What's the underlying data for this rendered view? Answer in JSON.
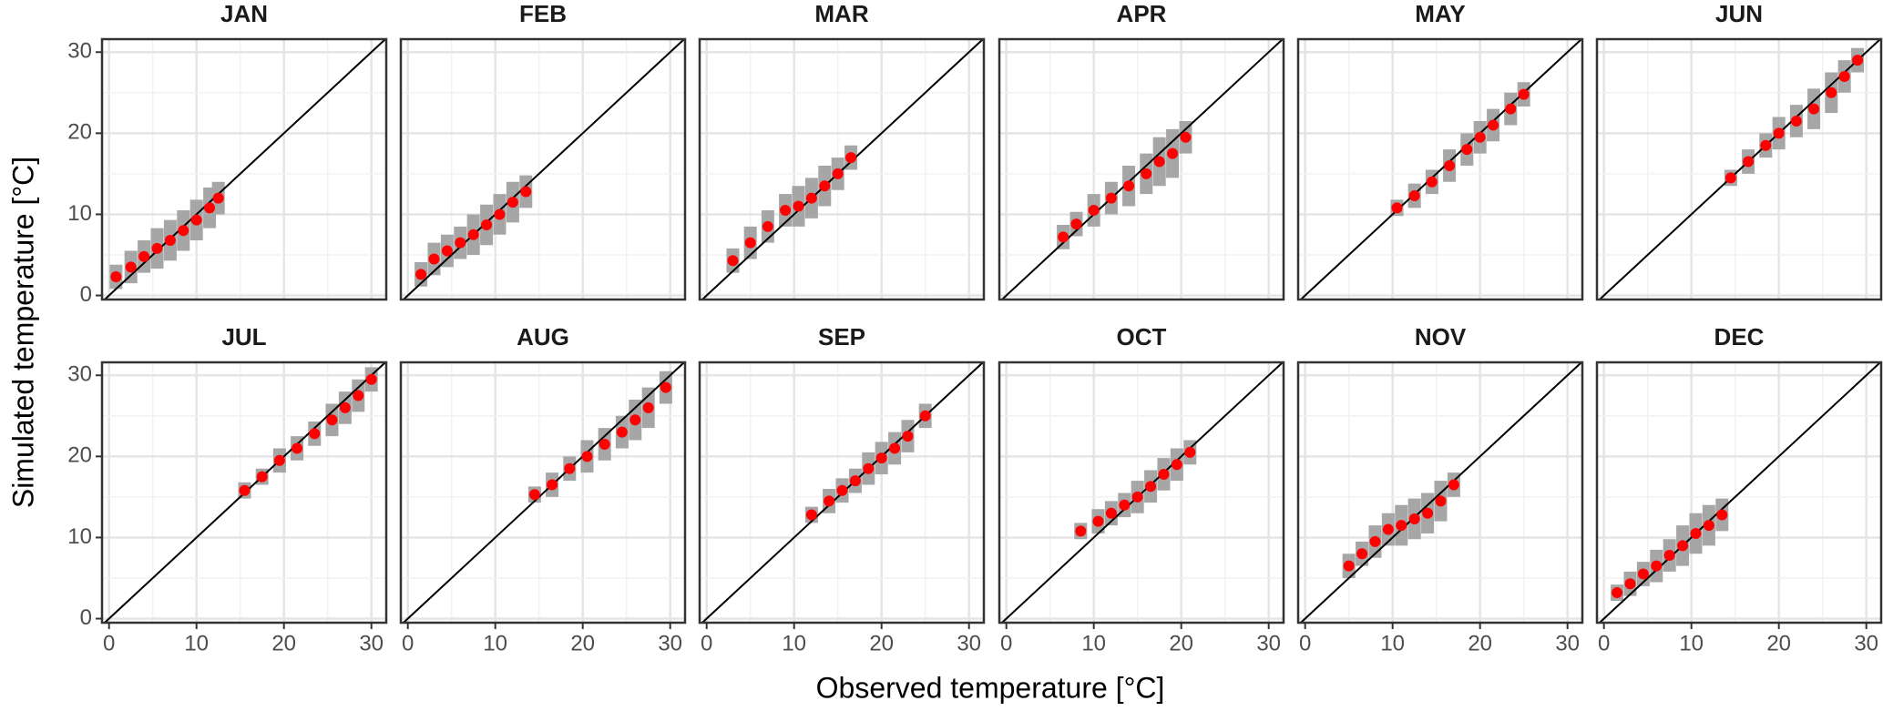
{
  "xlabel": "Observed temperature [°C]",
  "ylabel": "Simulated temperature [°C]",
  "chart_data": [
    {
      "type": "scatter",
      "title": "JAN",
      "x": [
        0.8,
        2.5,
        4,
        5.5,
        7,
        8.5,
        10,
        11.5,
        12.5
      ],
      "y": [
        2.3,
        3.5,
        4.8,
        5.8,
        6.8,
        8,
        9.3,
        10.8,
        12
      ],
      "yerr": [
        1.5,
        2,
        2,
        2.5,
        2.5,
        2.5,
        2.5,
        2.5,
        2
      ],
      "point_color": "#ff0000",
      "error_color": "#a6a6a6",
      "xlim": [
        -0.8,
        31.7
      ],
      "ylim": [
        -0.5,
        31.6
      ],
      "xticks": [
        0,
        10,
        20,
        30
      ],
      "yticks": [
        0,
        10,
        20,
        30
      ],
      "grid": true
    },
    {
      "type": "scatter",
      "title": "FEB",
      "x": [
        1.5,
        3,
        4.5,
        6,
        7.5,
        9,
        10.5,
        12,
        13.5
      ],
      "y": [
        2.6,
        4.5,
        5.5,
        6.5,
        7.5,
        8.7,
        10,
        11.5,
        12.8
      ],
      "yerr": [
        1.5,
        2,
        2,
        2,
        2.5,
        2.5,
        2.5,
        2.5,
        2
      ],
      "point_color": "#ff0000",
      "error_color": "#a6a6a6",
      "xlim": [
        -0.8,
        31.7
      ],
      "ylim": [
        -0.5,
        31.6
      ],
      "xticks": [
        0,
        10,
        20,
        30
      ],
      "yticks": [
        0,
        10,
        20,
        30
      ],
      "grid": true
    },
    {
      "type": "scatter",
      "title": "MAR",
      "x": [
        3,
        5,
        7,
        9,
        10.5,
        12,
        13.5,
        15,
        16.5
      ],
      "y": [
        4.3,
        6.5,
        8.5,
        10.5,
        11,
        12,
        13.5,
        15,
        17
      ],
      "yerr": [
        1.5,
        2,
        2,
        2,
        2.5,
        2.5,
        2.5,
        2,
        1.5
      ],
      "point_color": "#ff0000",
      "error_color": "#a6a6a6",
      "xlim": [
        -0.8,
        31.7
      ],
      "ylim": [
        -0.5,
        31.6
      ],
      "xticks": [
        0,
        10,
        20,
        30
      ],
      "yticks": [
        0,
        10,
        20,
        30
      ],
      "grid": true
    },
    {
      "type": "scatter",
      "title": "APR",
      "x": [
        6.5,
        8,
        10,
        12,
        14,
        16,
        17.5,
        19,
        20.5
      ],
      "y": [
        7.2,
        8.8,
        10.5,
        12,
        13.5,
        15,
        16.5,
        17.5,
        19.5
      ],
      "yerr": [
        1.5,
        1.5,
        2,
        2,
        2.5,
        2.5,
        3,
        3,
        2
      ],
      "point_color": "#ff0000",
      "error_color": "#a6a6a6",
      "xlim": [
        -0.8,
        31.7
      ],
      "ylim": [
        -0.5,
        31.6
      ],
      "xticks": [
        0,
        10,
        20,
        30
      ],
      "yticks": [
        0,
        10,
        20,
        30
      ],
      "grid": true
    },
    {
      "type": "scatter",
      "title": "MAY",
      "x": [
        10.5,
        12.5,
        14.5,
        16.5,
        18.5,
        20,
        21.5,
        23.5,
        25
      ],
      "y": [
        10.8,
        12.3,
        14,
        16,
        18,
        19.5,
        21,
        23,
        24.8
      ],
      "yerr": [
        1,
        1.5,
        1.5,
        2,
        2,
        2,
        2,
        2,
        1.5
      ],
      "point_color": "#ff0000",
      "error_color": "#a6a6a6",
      "xlim": [
        -0.8,
        31.7
      ],
      "ylim": [
        -0.5,
        31.6
      ],
      "xticks": [
        0,
        10,
        20,
        30
      ],
      "yticks": [
        0,
        10,
        20,
        30
      ],
      "grid": true
    },
    {
      "type": "scatter",
      "title": "JUN",
      "x": [
        14.5,
        16.5,
        18.5,
        20,
        22,
        24,
        26,
        27.5,
        29
      ],
      "y": [
        14.5,
        16.5,
        18.5,
        20,
        21.5,
        23,
        25,
        27,
        29
      ],
      "yerr": [
        1,
        1.5,
        1.5,
        2,
        2,
        2.5,
        2.5,
        2,
        1.5
      ],
      "point_color": "#ff0000",
      "error_color": "#a6a6a6",
      "xlim": [
        -0.8,
        31.7
      ],
      "ylim": [
        -0.5,
        31.6
      ],
      "xticks": [
        0,
        10,
        20,
        30
      ],
      "yticks": [
        0,
        10,
        20,
        30
      ],
      "grid": true
    },
    {
      "type": "scatter",
      "title": "JUL",
      "x": [
        15.5,
        17.5,
        19.5,
        21.5,
        23.5,
        25.5,
        27,
        28.5,
        30
      ],
      "y": [
        15.8,
        17.5,
        19.5,
        21,
        22.8,
        24.5,
        26,
        27.5,
        29.5
      ],
      "yerr": [
        1,
        1,
        1.5,
        1.5,
        1.5,
        2,
        2,
        2,
        1.5
      ],
      "point_color": "#ff0000",
      "error_color": "#a6a6a6",
      "xlim": [
        -0.8,
        31.7
      ],
      "ylim": [
        -0.5,
        31.6
      ],
      "xticks": [
        0,
        10,
        20,
        30
      ],
      "yticks": [
        0,
        10,
        20,
        30
      ],
      "grid": true
    },
    {
      "type": "scatter",
      "title": "AUG",
      "x": [
        14.5,
        16.5,
        18.5,
        20.5,
        22.5,
        24.5,
        26,
        27.5,
        29.5
      ],
      "y": [
        15.3,
        16.5,
        18.5,
        20,
        21.5,
        23,
        24.5,
        26,
        28.5
      ],
      "yerr": [
        1,
        1.5,
        1.5,
        2,
        2,
        2,
        2.5,
        2.5,
        2
      ],
      "point_color": "#ff0000",
      "error_color": "#a6a6a6",
      "xlim": [
        -0.8,
        31.7
      ],
      "ylim": [
        -0.5,
        31.6
      ],
      "xticks": [
        0,
        10,
        20,
        30
      ],
      "yticks": [
        0,
        10,
        20,
        30
      ],
      "grid": true
    },
    {
      "type": "scatter",
      "title": "SEP",
      "x": [
        12,
        14,
        15.5,
        17,
        18.5,
        20,
        21.5,
        23,
        25
      ],
      "y": [
        12.8,
        14.5,
        15.8,
        17,
        18.5,
        19.8,
        21,
        22.5,
        25
      ],
      "yerr": [
        1,
        1.5,
        1.5,
        1.5,
        2,
        2,
        2,
        2,
        1.5
      ],
      "point_color": "#ff0000",
      "error_color": "#a6a6a6",
      "xlim": [
        -0.8,
        31.7
      ],
      "ylim": [
        -0.5,
        31.6
      ],
      "xticks": [
        0,
        10,
        20,
        30
      ],
      "yticks": [
        0,
        10,
        20,
        30
      ],
      "grid": true
    },
    {
      "type": "scatter",
      "title": "OCT",
      "x": [
        8.5,
        10.5,
        12,
        13.5,
        15,
        16.5,
        18,
        19.5,
        21
      ],
      "y": [
        10.8,
        12,
        13,
        14,
        15,
        16.3,
        17.8,
        19,
        20.5
      ],
      "yerr": [
        1,
        1.5,
        1.5,
        1.5,
        2,
        2,
        2,
        2,
        1.5
      ],
      "point_color": "#ff0000",
      "error_color": "#a6a6a6",
      "xlim": [
        -0.8,
        31.7
      ],
      "ylim": [
        -0.5,
        31.6
      ],
      "xticks": [
        0,
        10,
        20,
        30
      ],
      "yticks": [
        0,
        10,
        20,
        30
      ],
      "grid": true
    },
    {
      "type": "scatter",
      "title": "NOV",
      "x": [
        5,
        6.5,
        8,
        9.5,
        11,
        12.5,
        14,
        15.5,
        17
      ],
      "y": [
        6.5,
        8,
        9.5,
        11,
        11.5,
        12.3,
        13,
        14.5,
        16.5
      ],
      "yerr": [
        1.5,
        1.5,
        2,
        2,
        2.5,
        2.5,
        2.5,
        2.5,
        1.5
      ],
      "point_color": "#ff0000",
      "error_color": "#a6a6a6",
      "xlim": [
        -0.8,
        31.7
      ],
      "ylim": [
        -0.5,
        31.6
      ],
      "xticks": [
        0,
        10,
        20,
        30
      ],
      "yticks": [
        0,
        10,
        20,
        30
      ],
      "grid": true
    },
    {
      "type": "scatter",
      "title": "DEC",
      "x": [
        1.5,
        3,
        4.5,
        6,
        7.5,
        9,
        10.5,
        12,
        13.5
      ],
      "y": [
        3.2,
        4.3,
        5.5,
        6.5,
        7.8,
        9,
        10.5,
        11.5,
        12.8
      ],
      "yerr": [
        1,
        1.5,
        1.5,
        2,
        2,
        2.5,
        2.5,
        2.5,
        2
      ],
      "point_color": "#ff0000",
      "error_color": "#a6a6a6",
      "xlim": [
        -0.8,
        31.7
      ],
      "ylim": [
        -0.5,
        31.6
      ],
      "xticks": [
        0,
        10,
        20,
        30
      ],
      "yticks": [
        0,
        10,
        20,
        30
      ],
      "grid": true
    }
  ]
}
